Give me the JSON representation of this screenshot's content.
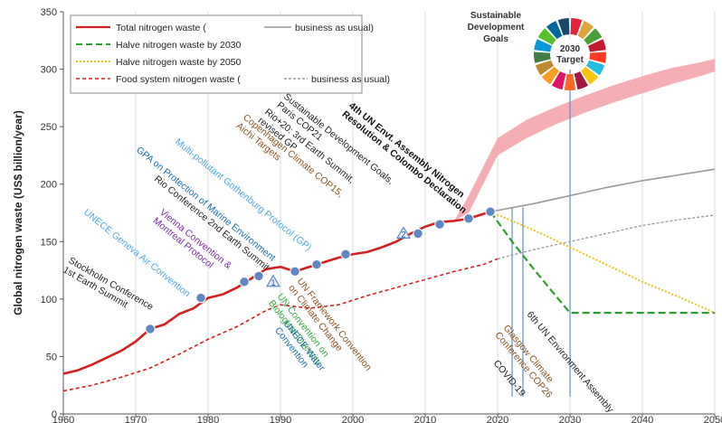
{
  "chart_data": {
    "type": "line",
    "ylabel": "Global nitrogen waste (US$ billion/year)",
    "xlim": [
      1960,
      2050
    ],
    "ylim": [
      0,
      350
    ],
    "xticks": [
      "1960",
      "1970",
      "1980",
      "1990",
      "2000",
      "2010",
      "2020",
      "2030",
      "2040",
      "2050"
    ],
    "yticks": [
      "0",
      "50",
      "100",
      "150",
      "200",
      "250",
      "300",
      "350"
    ],
    "grid": "vertical",
    "legend_position": "top-left",
    "legend": [
      "Total nitrogen waste (",
      "business as usual)",
      "Halve nitrogen waste by 2030",
      "Halve nitrogen waste by 2050",
      "Food system nitrogen waste (",
      "business as usual)"
    ],
    "series": [
      {
        "key": "total",
        "color": "#d42020",
        "x": [
          1960,
          1962,
          1964,
          1966,
          1968,
          1970,
          1972,
          1974,
          1976,
          1978,
          1980,
          1982,
          1984,
          1986,
          1988,
          1990,
          1992,
          1994,
          1996,
          1998,
          2000,
          2002,
          2004,
          2006,
          2008,
          2010,
          2012,
          2014,
          2016,
          2018,
          2019
        ],
        "y": [
          35,
          38,
          43,
          49,
          55,
          63,
          74,
          78,
          87,
          92,
          101,
          104,
          110,
          118,
          126,
          128,
          124,
          128,
          132,
          136,
          139,
          141,
          145,
          150,
          157,
          163,
          167,
          168,
          170,
          174,
          176
        ]
      },
      {
        "key": "food",
        "color": "#d42020",
        "x": [
          1960,
          1964,
          1968,
          1972,
          1976,
          1980,
          1984,
          1988,
          1990,
          1994,
          1998,
          2002,
          2006,
          2010,
          2014,
          2018,
          2020
        ],
        "y": [
          20,
          25,
          32,
          40,
          52,
          65,
          76,
          90,
          95,
          92,
          95,
          103,
          110,
          117,
          124,
          130,
          135
        ]
      },
      {
        "key": "total_bau",
        "color": "#999999",
        "x": [
          2019,
          2025,
          2030,
          2035,
          2040,
          2045,
          2050
        ],
        "y": [
          176,
          183,
          190,
          197,
          203,
          208,
          213
        ]
      },
      {
        "key": "food_bau",
        "color": "#999999",
        "x": [
          2020,
          2025,
          2030,
          2035,
          2040,
          2045,
          2050
        ],
        "y": [
          135,
          143,
          150,
          157,
          164,
          169,
          173
        ]
      },
      {
        "key": "halve_2030",
        "color": "#2e9e2e",
        "x": [
          2019,
          2022,
          2025,
          2028,
          2030,
          2035,
          2040,
          2045,
          2050
        ],
        "y": [
          176,
          150,
          126,
          103,
          88,
          88,
          88,
          88,
          88
        ]
      },
      {
        "key": "halve_2050",
        "color": "#e8c41a",
        "x": [
          2019,
          2025,
          2030,
          2035,
          2040,
          2045,
          2050
        ],
        "y": [
          176,
          160,
          145,
          130,
          115,
          102,
          88
        ]
      }
    ],
    "upper_band": {
      "x": [
        2014,
        2016,
        2018,
        2020,
        2024,
        2028,
        2032,
        2036,
        2040,
        2044,
        2048,
        2050
      ],
      "y_low": [
        168,
        175,
        200,
        225,
        240,
        252,
        262,
        271,
        279,
        287,
        294,
        298
      ],
      "y_high": [
        168,
        190,
        215,
        240,
        256,
        267,
        277,
        286,
        294,
        301,
        306,
        309
      ]
    },
    "event_markers": {
      "x": [
        1972,
        1979,
        1985,
        1987,
        1992,
        1995,
        1999,
        2009,
        2012,
        2016,
        2019
      ],
      "y": [
        74,
        101,
        115,
        120,
        124,
        130,
        139,
        157,
        165,
        170,
        176
      ]
    },
    "vertical_event_lines": [
      2022,
      2023.5,
      2030
    ],
    "triangle_markers": [
      {
        "x": 1989,
        "y": 115,
        "label": "1"
      },
      {
        "x": 2007,
        "y": 157,
        "label": "2"
      }
    ],
    "annotations": [
      {
        "lines": [
          "Stockholm Conference",
          "1st Earth Summit"
        ],
        "color": "#222222",
        "bold": false
      },
      {
        "lines": [
          "UNECE Geneva Air Convention"
        ],
        "color": "#4fa7e0",
        "bold": false
      },
      {
        "lines": [
          "Vienna Convention &",
          "Montreal Protocol"
        ],
        "color": "#7a2c9a",
        "bold": false
      },
      {
        "lines": [
          "Rio Conference  2nd Earth Summit"
        ],
        "color": "#222222",
        "bold": false
      },
      {
        "lines": [
          "GPA on Protection of Marine Environment"
        ],
        "color": "#1d6fa8",
        "bold": false
      },
      {
        "lines": [
          "Multi-pollutant Gothenburg Protocol (GP)"
        ],
        "color": "#4fa7e0",
        "bold": false
      },
      {
        "lines": [
          "Copenhagen Climate COP15,",
          "Aichi Targets"
        ],
        "color": "#8a5522",
        "bold": false
      },
      {
        "lines": [
          "Rio+20: 3rd Earth Summit,",
          "revised GP"
        ],
        "color": "#222222",
        "bold": false
      },
      {
        "lines": [
          "Sustainable Development Goals,",
          "Paris COP21"
        ],
        "color": "#222222",
        "bold": false
      },
      {
        "lines": [
          "4th UN Envt. Assembly Nitrogen",
          "Resolution & Colombo Declaration"
        ],
        "color": "#111111",
        "bold": true
      },
      {
        "lines": [
          "UN Framework Convention",
          "on Climate Change"
        ],
        "color": "#8a5522",
        "bold": false
      },
      {
        "lines": [
          "UN Convention on",
          "Biological Diversity"
        ],
        "color": "#3aa645",
        "bold": false
      },
      {
        "lines": [
          "UNECE Water",
          "Convention"
        ],
        "color": "#1d6fa8",
        "bold": false
      },
      {
        "lines": [
          "COVID-19"
        ],
        "color": "#222222",
        "bold": false
      },
      {
        "lines": [
          "Glasgow Climate",
          "Conference COP26"
        ],
        "color": "#8a5522",
        "bold": false
      },
      {
        "lines": [
          "6th UN Environment Assembly"
        ],
        "color": "#222222",
        "bold": false
      }
    ],
    "sdg_label": [
      "Sustainable",
      "Development",
      "Goals"
    ],
    "sdg_badge": [
      "2030",
      "Target"
    ],
    "sdg_colors": [
      "#e5243b",
      "#dda63a",
      "#4c9f38",
      "#c5192d",
      "#ff3a21",
      "#26bde2",
      "#fcc30b",
      "#a21942",
      "#fd6925",
      "#dd1367",
      "#fd9d24",
      "#bf8b2e",
      "#3f7e44",
      "#0a97d9",
      "#56c02b",
      "#00689d",
      "#19486a"
    ]
  }
}
